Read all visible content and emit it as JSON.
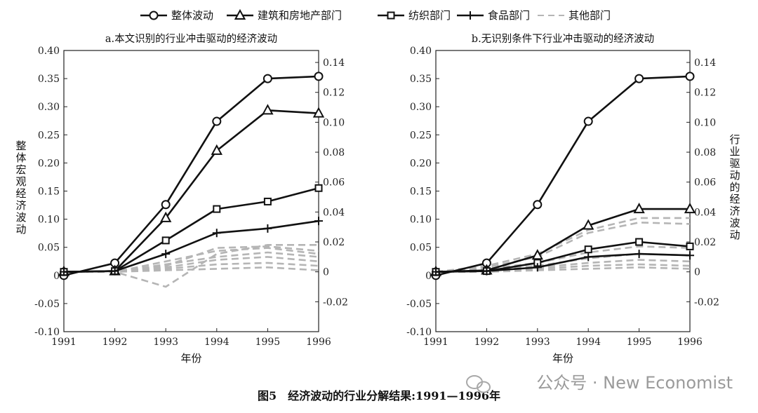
{
  "legend": {
    "items": [
      {
        "label": "整体波动",
        "marker": "circle",
        "style": "solid"
      },
      {
        "label": "建筑和房地产部门",
        "marker": "triangle",
        "style": "solid"
      },
      {
        "label": "纺织部门",
        "marker": "square",
        "style": "solid"
      },
      {
        "label": "食品部门",
        "marker": "plus",
        "style": "solid"
      },
      {
        "label": "其他部门",
        "marker": "none",
        "style": "dashed"
      }
    ]
  },
  "caption": "图5　经济波动的行业分解结果:1991—1996年",
  "watermark": "公众号 · New Economist",
  "colors": {
    "main": "#111111",
    "other": "#b5b5b5"
  },
  "chart_data": [
    {
      "type": "line",
      "title": "a.本文识别的行业冲击驱动的经济波动",
      "xlabel": "年份",
      "ylabel_left": "整体宏观经济波动",
      "ylabel_right": "",
      "x": [
        "1991",
        "1992",
        "1993",
        "1994",
        "1995",
        "1996"
      ],
      "ylim_left": [
        -0.1,
        0.4
      ],
      "yticks_left": [
        "0.40",
        "0.35",
        "0.30",
        "0.25",
        "0.20",
        "0.15",
        "0.10",
        "0.05",
        "0",
        "-0.05",
        "-0.10"
      ],
      "ylim_right": [
        -0.04,
        0.148
      ],
      "yticks_right": [
        "0.14",
        "0.12",
        "0.10",
        "0.08",
        "0.06",
        "0.04",
        "0.02",
        "0",
        "-0.02"
      ],
      "series": [
        {
          "name": "整体波动",
          "axis": "left",
          "marker": "circle",
          "style": "solid",
          "values": [
            0,
            0.022,
            0.126,
            0.274,
            0.35,
            0.354
          ]
        },
        {
          "name": "建筑和房地产部门",
          "axis": "right",
          "marker": "triangle",
          "style": "solid",
          "values": [
            0,
            0.0005,
            0.036,
            0.081,
            0.108,
            0.106
          ]
        },
        {
          "name": "纺织部门",
          "axis": "right",
          "marker": "square",
          "style": "solid",
          "values": [
            0,
            0.0005,
            0.021,
            0.042,
            0.047,
            0.056
          ]
        },
        {
          "name": "食品部门",
          "axis": "right",
          "marker": "plus",
          "style": "solid",
          "values": [
            0,
            0.0005,
            0.012,
            0.026,
            0.029,
            0.034
          ]
        },
        {
          "name": "其他部门",
          "axis": "right",
          "marker": "none",
          "style": "dashed",
          "values": [
            0,
            0.0,
            -0.01,
            0.012,
            0.018,
            0.018
          ]
        },
        {
          "name": "其他部门",
          "axis": "right",
          "marker": "none",
          "style": "dashed",
          "values": [
            0,
            0.0,
            0.004,
            0.016,
            0.017,
            0.014
          ]
        },
        {
          "name": "其他部门",
          "axis": "right",
          "marker": "none",
          "style": "dashed",
          "values": [
            0,
            0.0,
            0.007,
            0.014,
            0.016,
            0.012
          ]
        },
        {
          "name": "其他部门",
          "axis": "right",
          "marker": "none",
          "style": "dashed",
          "values": [
            0,
            0.0,
            0.005,
            0.01,
            0.013,
            0.01
          ]
        },
        {
          "name": "其他部门",
          "axis": "right",
          "marker": "none",
          "style": "dashed",
          "values": [
            0,
            0.0,
            0.003,
            0.008,
            0.01,
            0.007
          ]
        },
        {
          "name": "其他部门",
          "axis": "right",
          "marker": "none",
          "style": "dashed",
          "values": [
            0,
            0.0,
            0.002,
            0.005,
            0.006,
            0.004
          ]
        },
        {
          "name": "其他部门",
          "axis": "right",
          "marker": "none",
          "style": "dashed",
          "values": [
            0,
            0.0,
            0.001,
            0.002,
            0.003,
            0.001
          ]
        }
      ]
    },
    {
      "type": "line",
      "title": "b.无识别条件下行业冲击驱动的经济波动",
      "xlabel": "年份",
      "ylabel_left": "",
      "ylabel_right": "行业驱动的经济波动",
      "x": [
        "1991",
        "1992",
        "1993",
        "1994",
        "1995",
        "1996"
      ],
      "ylim_left": [
        -0.1,
        0.4
      ],
      "yticks_left": [
        "0.40",
        "0.35",
        "0.30",
        "0.25",
        "0.20",
        "0.15",
        "0.10",
        "0.05",
        "0",
        "-0.05",
        "-0.10"
      ],
      "ylim_right": [
        -0.04,
        0.148
      ],
      "yticks_right": [
        "0.14",
        "0.12",
        "0.10",
        "0.08",
        "0.06",
        "0.04",
        "0.02",
        "0",
        "-0.02"
      ],
      "series": [
        {
          "name": "整体波动",
          "axis": "left",
          "marker": "circle",
          "style": "solid",
          "values": [
            0,
            0.022,
            0.126,
            0.274,
            0.35,
            0.354
          ]
        },
        {
          "name": "建筑和房地产部门",
          "axis": "right",
          "marker": "triangle",
          "style": "solid",
          "values": [
            0,
            0.001,
            0.011,
            0.031,
            0.042,
            0.042
          ]
        },
        {
          "name": "纺织部门",
          "axis": "right",
          "marker": "square",
          "style": "solid",
          "values": [
            0,
            0.0005,
            0.006,
            0.015,
            0.02,
            0.017
          ]
        },
        {
          "name": "食品部门",
          "axis": "right",
          "marker": "plus",
          "style": "solid",
          "values": [
            0,
            0.0005,
            0.003,
            0.01,
            0.012,
            0.011
          ]
        },
        {
          "name": "其他部门",
          "axis": "right",
          "marker": "none",
          "style": "dashed",
          "values": [
            0,
            0.004,
            0.012,
            0.028,
            0.036,
            0.036
          ]
        },
        {
          "name": "其他部门",
          "axis": "right",
          "marker": "none",
          "style": "dashed",
          "values": [
            0,
            0.003,
            0.01,
            0.026,
            0.033,
            0.032
          ]
        },
        {
          "name": "其他部门",
          "axis": "right",
          "marker": "none",
          "style": "dashed",
          "values": [
            0,
            0.002,
            0.006,
            0.013,
            0.017,
            0.016
          ]
        },
        {
          "name": "其他部门",
          "axis": "right",
          "marker": "none",
          "style": "dashed",
          "values": [
            0,
            0.001,
            0.004,
            0.009,
            0.012,
            0.011
          ]
        },
        {
          "name": "其他部门",
          "axis": "right",
          "marker": "none",
          "style": "dashed",
          "values": [
            0,
            0.001,
            0.003,
            0.006,
            0.008,
            0.007
          ]
        },
        {
          "name": "其他部门",
          "axis": "right",
          "marker": "none",
          "style": "dashed",
          "values": [
            0,
            0.0005,
            0.002,
            0.004,
            0.005,
            0.004
          ]
        },
        {
          "name": "其他部门",
          "axis": "right",
          "marker": "none",
          "style": "dashed",
          "values": [
            0,
            0.0,
            0.001,
            0.002,
            0.003,
            0.002
          ]
        }
      ]
    }
  ]
}
